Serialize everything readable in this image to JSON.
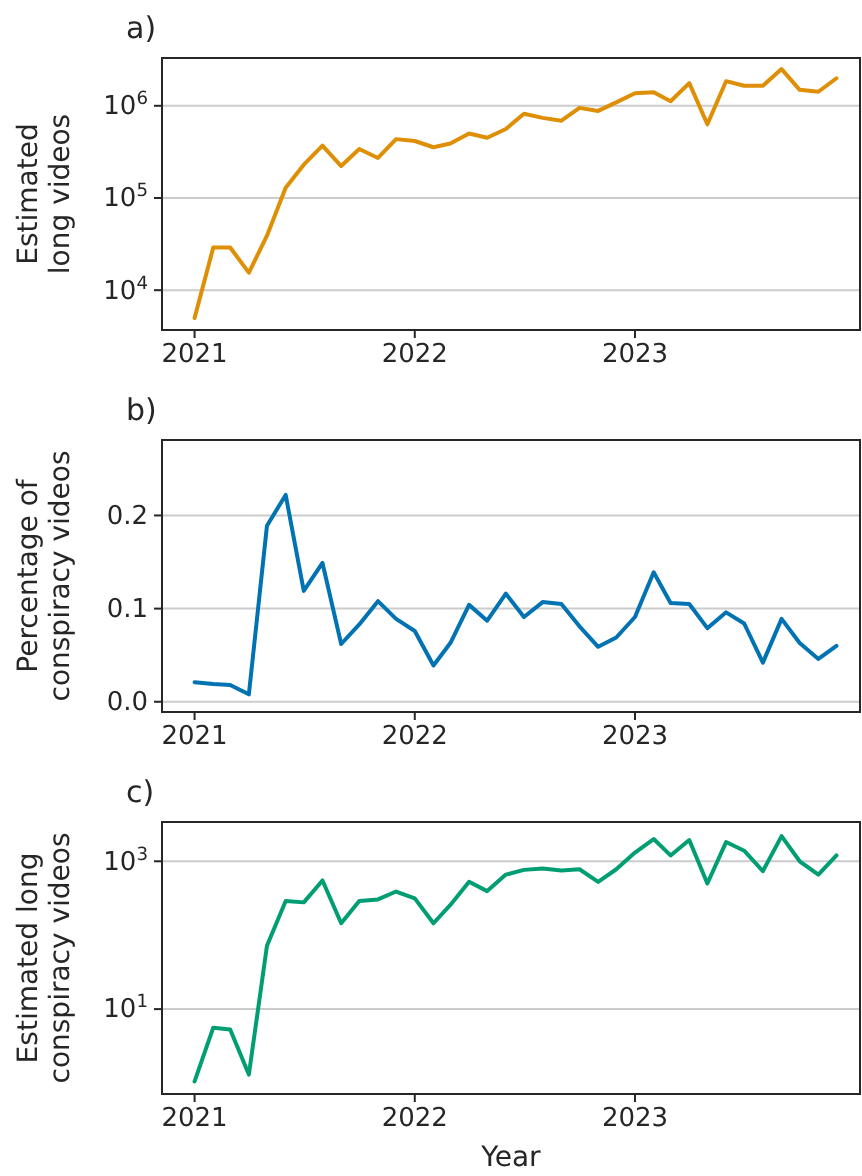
{
  "chart_data": [
    {
      "type": "line",
      "title": "a)",
      "ylabel": "Estimated long videos",
      "log": "y",
      "grid": "y",
      "x": [
        "2021-01",
        "2021-02",
        "2021-03",
        "2021-04",
        "2021-05",
        "2021-06",
        "2021-07",
        "2021-08",
        "2021-09",
        "2021-10",
        "2021-11",
        "2021-12",
        "2022-01",
        "2022-02",
        "2022-03",
        "2022-04",
        "2022-05",
        "2022-06",
        "2022-07",
        "2022-08",
        "2022-09",
        "2022-10",
        "2022-11",
        "2022-12",
        "2023-01",
        "2023-02",
        "2023-03",
        "2023-04",
        "2023-05",
        "2023-06",
        "2023-07",
        "2023-08",
        "2023-09",
        "2023-10",
        "2023-11",
        "2023-12"
      ],
      "series": [
        {
          "color": "#de8f05",
          "values": [
            5000,
            29000,
            29000,
            15500,
            39000,
            129000,
            230000,
            370000,
            222000,
            340000,
            272000,
            435000,
            415000,
            355000,
            390000,
            500000,
            450000,
            560000,
            820000,
            740000,
            690000,
            950000,
            880000,
            1090000,
            1370000,
            1400000,
            1120000,
            1760000,
            630000,
            1850000,
            1650000,
            1650000,
            2500000,
            1490000,
            1420000,
            1990000
          ]
        }
      ],
      "xlim": [
        "2020-11-08",
        "2024-01-09"
      ],
      "xticks": [
        {
          "value": "2021-01-01",
          "label": "2021"
        },
        {
          "value": "2022-01-01",
          "label": "2022"
        },
        {
          "value": "2023-01-01",
          "label": "2023"
        }
      ],
      "ylim": [
        3700,
        3300000
      ],
      "yticks": [
        {
          "value": 10000,
          "label": "10$^{4}$"
        },
        {
          "value": 100000,
          "label": "10$^{5}$"
        },
        {
          "value": 1000000,
          "label": "10$^{6}$"
        }
      ]
    },
    {
      "type": "line",
      "title": "b)",
      "ylabel": "Percentage of conspiracy videos",
      "grid": "y",
      "x": [
        "2021-01",
        "2021-02",
        "2021-03",
        "2021-04",
        "2021-05",
        "2021-06",
        "2021-07",
        "2021-08",
        "2021-09",
        "2021-10",
        "2021-11",
        "2021-12",
        "2022-01",
        "2022-02",
        "2022-03",
        "2022-04",
        "2022-05",
        "2022-06",
        "2022-07",
        "2022-08",
        "2022-09",
        "2022-10",
        "2022-11",
        "2022-12",
        "2023-01",
        "2023-02",
        "2023-03",
        "2023-04",
        "2023-05",
        "2023-06",
        "2023-07",
        "2023-08",
        "2023-09",
        "2023-10",
        "2023-11",
        "2023-12"
      ],
      "series": [
        {
          "color": "#0173b2",
          "values": [
            0.021,
            0.019,
            0.018,
            0.008,
            0.189,
            0.222,
            0.119,
            0.149,
            0.062,
            0.083,
            0.108,
            0.089,
            0.076,
            0.039,
            0.063,
            0.104,
            0.087,
            0.116,
            0.091,
            0.107,
            0.105,
            0.081,
            0.059,
            0.069,
            0.091,
            0.139,
            0.106,
            0.105,
            0.079,
            0.096,
            0.084,
            0.042,
            0.089,
            0.063,
            0.046,
            0.06
          ]
        }
      ],
      "xlim": [
        "2020-11-08",
        "2024-01-09"
      ],
      "xticks": [
        {
          "value": "2021-01-01",
          "label": "2021"
        },
        {
          "value": "2022-01-01",
          "label": "2022"
        },
        {
          "value": "2023-01-01",
          "label": "2023"
        }
      ],
      "ylim": [
        -0.011,
        0.281
      ],
      "yticks": [
        {
          "value": 0,
          "label": "0.0"
        },
        0.1,
        0.2
      ]
    },
    {
      "type": "line",
      "title": "c)",
      "xlabel": "Year",
      "ylabel": "Estimated long conspiracy videos",
      "log": "y",
      "grid": "y",
      "x": [
        "2021-01",
        "2021-02",
        "2021-03",
        "2021-04",
        "2021-05",
        "2021-06",
        "2021-07",
        "2021-08",
        "2021-09",
        "2021-10",
        "2021-11",
        "2021-12",
        "2022-01",
        "2022-02",
        "2022-03",
        "2022-04",
        "2022-05",
        "2022-06",
        "2022-07",
        "2022-08",
        "2022-09",
        "2022-10",
        "2022-11",
        "2022-12",
        "2023-01",
        "2023-02",
        "2023-03",
        "2023-04",
        "2023-05",
        "2023-06",
        "2023-07",
        "2023-08",
        "2023-09",
        "2023-10",
        "2023-11",
        "2023-12"
      ],
      "series": [
        {
          "color": "#029e73",
          "values": [
            1.05,
            5.6,
            5.3,
            1.3,
            72,
            290,
            278,
            550,
            145,
            290,
            305,
            390,
            315,
            145,
            257,
            527,
            395,
            660,
            765,
            800,
            750,
            780,
            527,
            780,
            1310,
            2000,
            1200,
            1940,
            500,
            1820,
            1390,
            735,
            2190,
            1000,
            660,
            1200
          ]
        }
      ],
      "xlim": [
        "2020-11-08",
        "2024-01-09"
      ],
      "xticks": [
        {
          "value": "2021-01-01",
          "label": "2021"
        },
        {
          "value": "2022-01-01",
          "label": "2022"
        },
        {
          "value": "2023-01-01",
          "label": "2023"
        }
      ],
      "ylim": [
        0.71,
        3400
      ],
      "yticks": [
        {
          "value": 10,
          "label": "10$^{1}$"
        },
        {
          "value": 1000,
          "label": "10$^{3}$"
        }
      ]
    }
  ]
}
